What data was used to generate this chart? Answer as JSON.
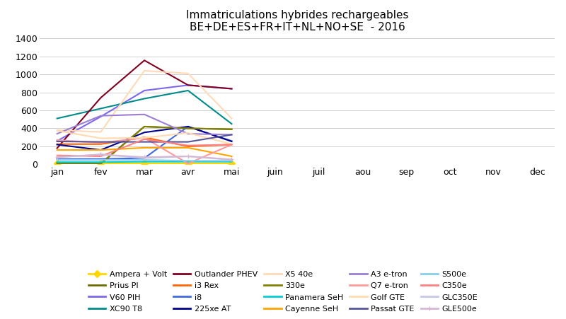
{
  "title_line1": "Immatriculations hybrides rechargeables",
  "title_line2": "BE+DE+ES+FR+IT+NL+NO+SE  - 2016",
  "x_labels": [
    "jan",
    "fev",
    "mar",
    "avr",
    "mai",
    "juin",
    "juil",
    "aou",
    "sep",
    "oct",
    "nov",
    "dec"
  ],
  "ylim": [
    0,
    1400
  ],
  "yticks": [
    0,
    200,
    400,
    600,
    800,
    1000,
    1200,
    1400
  ],
  "series": [
    {
      "name": "Ampera + Volt",
      "color": "#FFD700",
      "values": [
        10,
        10,
        10,
        10,
        10,
        null,
        null,
        null,
        null,
        null,
        null,
        null
      ],
      "marker": "D",
      "linewidth": 1.5
    },
    {
      "name": "Prius PI",
      "color": "#6B6B00",
      "values": [
        15,
        10,
        420,
        400,
        390,
        null,
        null,
        null,
        null,
        null,
        null,
        null
      ],
      "marker": null,
      "linewidth": 1.5
    },
    {
      "name": "V60 PIH",
      "color": "#7B68EE",
      "values": [
        260,
        530,
        820,
        880,
        840,
        null,
        null,
        null,
        null,
        null,
        null,
        null
      ],
      "marker": null,
      "linewidth": 1.5
    },
    {
      "name": "XC90 T8",
      "color": "#008B8B",
      "values": [
        510,
        620,
        730,
        820,
        450,
        null,
        null,
        null,
        null,
        null,
        null,
        null
      ],
      "marker": null,
      "linewidth": 1.5
    },
    {
      "name": "Outlander PHEV",
      "color": "#800020",
      "values": [
        180,
        740,
        1155,
        880,
        840,
        null,
        null,
        null,
        null,
        null,
        null,
        null
      ],
      "marker": null,
      "linewidth": 1.5
    },
    {
      "name": "i3 Rex",
      "color": "#FF6600",
      "values": [
        225,
        225,
        300,
        200,
        220,
        null,
        null,
        null,
        null,
        null,
        null,
        null
      ],
      "marker": null,
      "linewidth": 1.5
    },
    {
      "name": "i8",
      "color": "#4169E1",
      "values": [
        60,
        60,
        70,
        420,
        260,
        null,
        null,
        null,
        null,
        null,
        null,
        null
      ],
      "marker": null,
      "linewidth": 1.5
    },
    {
      "name": "225xe AT",
      "color": "#00008B",
      "values": [
        220,
        160,
        355,
        420,
        255,
        null,
        null,
        null,
        null,
        null,
        null,
        null
      ],
      "marker": null,
      "linewidth": 1.5
    },
    {
      "name": "X5 40e",
      "color": "#FFDAB9",
      "values": [
        380,
        360,
        1040,
        1010,
        510,
        null,
        null,
        null,
        null,
        null,
        null,
        null
      ],
      "marker": null,
      "linewidth": 1.5
    },
    {
      "name": "330e",
      "color": "#808000",
      "values": [
        5,
        5,
        420,
        400,
        390,
        null,
        null,
        null,
        null,
        null,
        null,
        null
      ],
      "marker": null,
      "linewidth": 1.5
    },
    {
      "name": "Panamera SeH",
      "color": "#00CED1",
      "values": [
        25,
        25,
        30,
        30,
        30,
        null,
        null,
        null,
        null,
        null,
        null,
        null
      ],
      "marker": null,
      "linewidth": 1.5
    },
    {
      "name": "Cayenne SeH",
      "color": "#FFA500",
      "values": [
        160,
        160,
        185,
        185,
        90,
        null,
        null,
        null,
        null,
        null,
        null,
        null
      ],
      "marker": null,
      "linewidth": 1.5
    },
    {
      "name": "A3 e-tron",
      "color": "#9B7FD4",
      "values": [
        340,
        540,
        555,
        340,
        330,
        null,
        null,
        null,
        null,
        null,
        null,
        null
      ],
      "marker": null,
      "linewidth": 1.5
    },
    {
      "name": "Q7 e-tron",
      "color": "#FF9999",
      "values": [
        270,
        240,
        295,
        10,
        220,
        null,
        null,
        null,
        null,
        null,
        null,
        null
      ],
      "marker": null,
      "linewidth": 1.5
    },
    {
      "name": "Golf GTE",
      "color": "#FFDAB0",
      "values": [
        375,
        290,
        295,
        350,
        225,
        null,
        null,
        null,
        null,
        null,
        null,
        null
      ],
      "marker": null,
      "linewidth": 1.5
    },
    {
      "name": "Passat GTE",
      "color": "#555599",
      "values": [
        255,
        250,
        250,
        250,
        330,
        null,
        null,
        null,
        null,
        null,
        null,
        null
      ],
      "marker": null,
      "linewidth": 1.5
    },
    {
      "name": "S500e",
      "color": "#87CEEB",
      "values": [
        50,
        50,
        50,
        40,
        40,
        null,
        null,
        null,
        null,
        null,
        null,
        null
      ],
      "marker": null,
      "linewidth": 1.5
    },
    {
      "name": "C350e",
      "color": "#FF8080",
      "values": [
        100,
        90,
        280,
        210,
        220,
        null,
        null,
        null,
        null,
        null,
        null,
        null
      ],
      "marker": null,
      "linewidth": 1.5
    },
    {
      "name": "GLC350E",
      "color": "#C8C8E8",
      "values": [
        80,
        110,
        70,
        90,
        50,
        null,
        null,
        null,
        null,
        null,
        null,
        null
      ],
      "marker": null,
      "linewidth": 1.5
    },
    {
      "name": "GLE500e",
      "color": "#D4B8D4",
      "values": [
        80,
        110,
        80,
        90,
        55,
        null,
        null,
        null,
        null,
        null,
        null,
        null
      ],
      "marker": "+",
      "linewidth": 1.5
    }
  ],
  "background_color": "#FFFFFF",
  "grid_color": "#D0D0D0",
  "legend_ncol": 5,
  "legend_fontsize": 8.0
}
